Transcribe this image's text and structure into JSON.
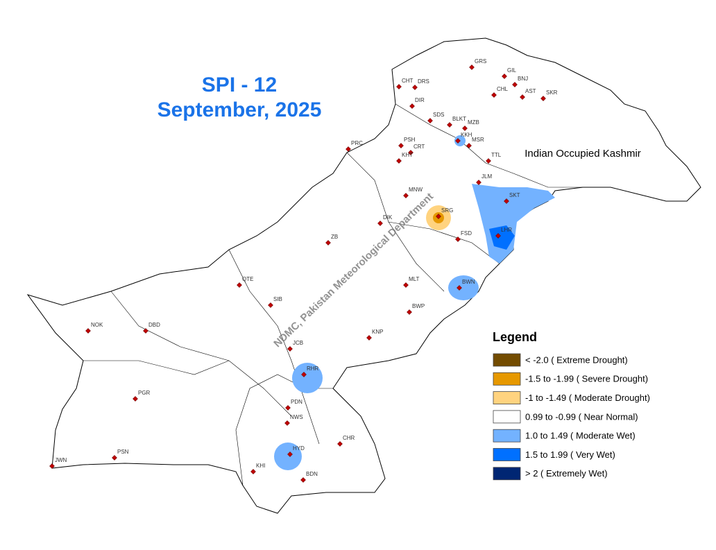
{
  "title": {
    "line1": "SPI - 12",
    "line2": "September, 2025"
  },
  "region_label": "Indian Occupied Kashmir",
  "watermark": "NDMC, Pakistan Meteorological Department",
  "stations": [
    "GRS",
    "GIL",
    "BNJ",
    "CHT",
    "DRS",
    "CHL",
    "AST",
    "SKR",
    "DIR",
    "SDS",
    "BLKT",
    "MZB",
    "KKH",
    "MSR",
    "PRC",
    "PSH",
    "CRT",
    "KHT",
    "TTL",
    "JLM",
    "SKT",
    "MNW",
    "SRG",
    "DIK",
    "FSD",
    "LHR",
    "ZB",
    "QTE",
    "SIB",
    "MLT",
    "BWN",
    "BWP",
    "KNP",
    "NOK",
    "DBD",
    "JCB",
    "RHR",
    "PGR",
    "PDN",
    "NWS",
    "HYD",
    "CHR",
    "BDN",
    "PSN",
    "JWN",
    "KHI"
  ],
  "legend": {
    "title": "Legend",
    "items": [
      {
        "label": "< -2.0 ( Extreme Drought)",
        "color": "#734c00"
      },
      {
        "label": "-1.5 to -1.99 ( Severe Drought)",
        "color": "#e69800"
      },
      {
        "label": "-1 to -1.49 ( Moderate Drought)",
        "color": "#ffd37f"
      },
      {
        "label": "0.99 to -0.99 ( Near Normal)",
        "color": "#ffffff"
      },
      {
        "label": "1.0 to 1.49 ( Moderate Wet)",
        "color": "#73b2ff"
      },
      {
        "label": "1.5 to 1.99 ( Very Wet)",
        "color": "#0070ff"
      },
      {
        "label": "> 2 ( Extremely Wet)",
        "color": "#002673"
      }
    ]
  }
}
